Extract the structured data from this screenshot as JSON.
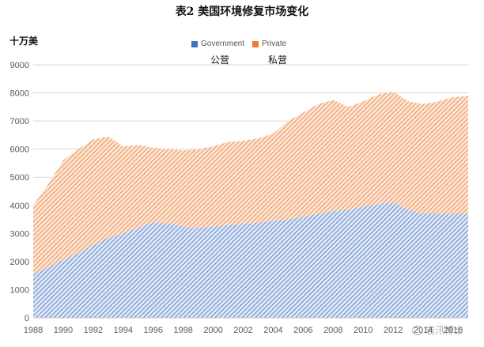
{
  "chart_data": {
    "type": "area",
    "title": "表2  美国环境修复市场变化",
    "ylabel": "十万美",
    "xlabel": "",
    "stacked": true,
    "ylim": [
      0,
      9000
    ],
    "yticks": [
      0,
      1000,
      2000,
      3000,
      4000,
      5000,
      6000,
      7000,
      8000,
      9000
    ],
    "xticks": [
      1988,
      1990,
      1992,
      1994,
      1996,
      1998,
      2000,
      2002,
      2004,
      2006,
      2008,
      2010,
      2012,
      2014,
      2016
    ],
    "x": [
      1988,
      1989,
      1990,
      1991,
      1992,
      1993,
      1994,
      1995,
      1996,
      1997,
      1998,
      1999,
      2000,
      2001,
      2002,
      2003,
      2004,
      2005,
      2006,
      2007,
      2008,
      2009,
      2010,
      2011,
      2012,
      2013,
      2014,
      2015,
      2016,
      2017
    ],
    "series": [
      {
        "name": "Government",
        "label_cn": "公营",
        "color": "#4472C4",
        "values": [
          1550,
          1800,
          2050,
          2300,
          2600,
          2850,
          3000,
          3200,
          3400,
          3350,
          3250,
          3200,
          3250,
          3300,
          3350,
          3380,
          3450,
          3500,
          3600,
          3700,
          3800,
          3850,
          3950,
          4050,
          4100,
          3850,
          3700,
          3700,
          3700,
          3700
        ]
      },
      {
        "name": "Private",
        "label_cn": "私营",
        "color": "#ED7D31",
        "values": [
          2450,
          2950,
          3550,
          3700,
          3750,
          3600,
          3100,
          2950,
          2650,
          2650,
          2700,
          2800,
          2850,
          2950,
          2950,
          3000,
          3100,
          3500,
          3700,
          3900,
          3950,
          3650,
          3750,
          3900,
          3950,
          3850,
          3900,
          4000,
          4150,
          4200
        ]
      }
    ],
    "grid": true,
    "legend": "top"
  },
  "watermark": {
    "text": "岩汛博士"
  }
}
